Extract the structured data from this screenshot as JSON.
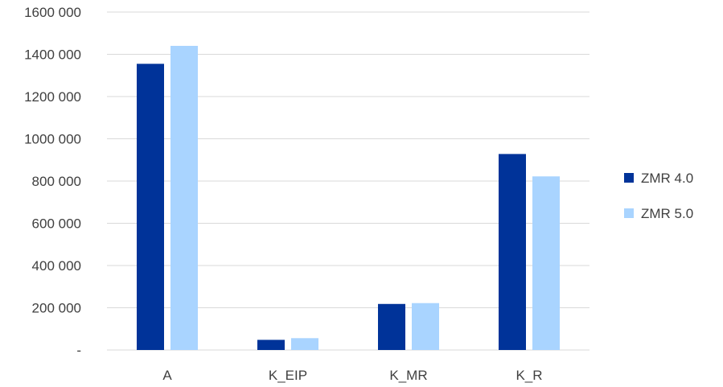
{
  "chart_data": {
    "type": "bar",
    "categories": [
      "A",
      "K_EIP",
      "K_MR",
      "K_R"
    ],
    "series": [
      {
        "name": "ZMR 4.0",
        "color": "#003399",
        "values": [
          1355000,
          48000,
          218000,
          928000
        ]
      },
      {
        "name": "ZMR 5.0",
        "color": "#a9d4ff",
        "values": [
          1440000,
          56000,
          222000,
          822000
        ]
      }
    ],
    "ylim": [
      0,
      1600000
    ],
    "yticks": [
      {
        "value": 0,
        "label": "-"
      },
      {
        "value": 200000,
        "label": "200 000"
      },
      {
        "value": 400000,
        "label": "400 000"
      },
      {
        "value": 600000,
        "label": "600 000"
      },
      {
        "value": 800000,
        "label": "800 000"
      },
      {
        "value": 1000000,
        "label": "1000 000"
      },
      {
        "value": 1200000,
        "label": "1200 000"
      },
      {
        "value": 1400000,
        "label": "1400 000"
      },
      {
        "value": 1600000,
        "label": "1600 000"
      }
    ],
    "grid": true,
    "legend": "right",
    "title": "",
    "xlabel": "",
    "ylabel": ""
  }
}
